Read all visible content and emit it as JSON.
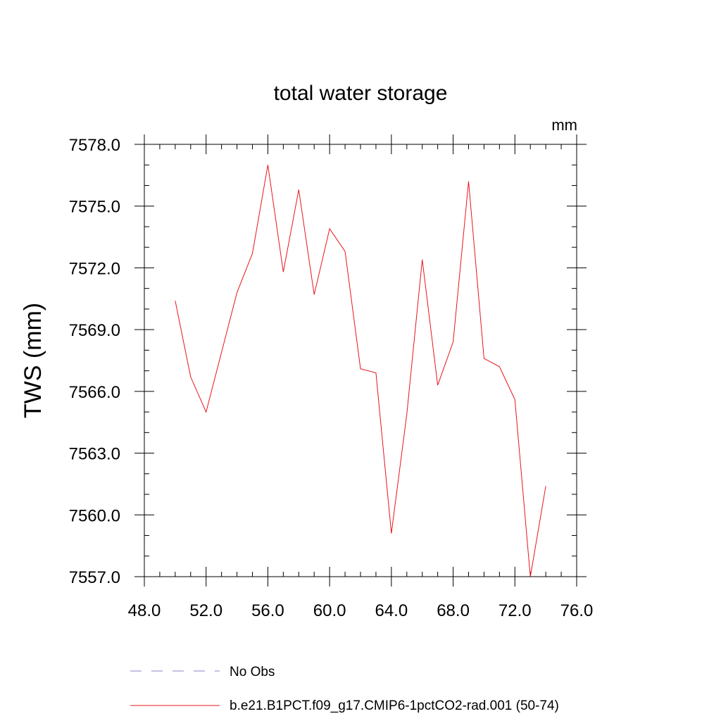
{
  "chart_data": {
    "type": "line",
    "title": "total water storage",
    "ylabel": "TWS  (mm)",
    "units_label": "mm",
    "xlim": [
      48,
      76
    ],
    "ylim": [
      7557,
      7578
    ],
    "xticks": [
      48,
      52,
      56,
      60,
      64,
      68,
      72,
      76
    ],
    "xtick_labels": [
      "48.0",
      "52.0",
      "56.0",
      "60.0",
      "64.0",
      "68.0",
      "72.0",
      "76.0"
    ],
    "yticks": [
      7557,
      7560,
      7563,
      7566,
      7569,
      7572,
      7575,
      7578
    ],
    "ytick_labels": [
      "7557.0",
      "7560.0",
      "7563.0",
      "7566.0",
      "7569.0",
      "7572.0",
      "7575.0",
      "7578.0"
    ],
    "x_minor_step": 1,
    "y_minor_step": 1,
    "grid": false,
    "series": [
      {
        "name": "No Obs",
        "color": "#8a84c8",
        "dash": true,
        "x": [],
        "y": []
      },
      {
        "name": "b.e21.B1PCT.f09_g17.CMIP6-1pctCO2-rad.001 (50-74)",
        "color": "#e8141b",
        "dash": false,
        "x": [
          50,
          51,
          52,
          53,
          54,
          55,
          56,
          57,
          58,
          59,
          60,
          61,
          62,
          63,
          64,
          65,
          66,
          67,
          68,
          69,
          70,
          71,
          72,
          73,
          74
        ],
        "y": [
          7570.4,
          7566.7,
          7565.0,
          7567.9,
          7570.8,
          7572.7,
          7577.0,
          7571.8,
          7575.8,
          7570.7,
          7573.9,
          7572.8,
          7567.1,
          7566.9,
          7559.1,
          7564.9,
          7572.4,
          7566.3,
          7568.4,
          7576.2,
          7567.6,
          7567.2,
          7565.6,
          7557.0,
          7561.4
        ]
      }
    ],
    "legend_position": "bottom"
  }
}
